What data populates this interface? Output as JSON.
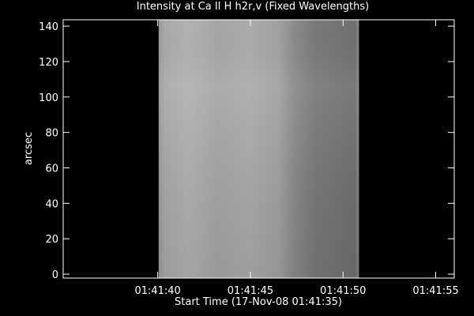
{
  "chart_data": {
    "type": "image",
    "title": "Intensity at Ca II H h2r,v (Fixed Wavelengths)",
    "x_label": "Start Time (17-Nov-08 01:41:35)",
    "y_label": "arcsec",
    "xlim": [
      -0.1,
      21.0
    ],
    "xticks": [
      {
        "value": 5,
        "label": "01:41:40"
      },
      {
        "value": 10,
        "label": "01:41:45"
      },
      {
        "value": 15,
        "label": "01:41:50"
      },
      {
        "value": 20,
        "label": "01:41:55"
      }
    ],
    "ylim": [
      -2.2,
      143.6
    ],
    "yticks": [
      0,
      20,
      40,
      60,
      80,
      100,
      120,
      140
    ],
    "image_x_extent": [
      5.05,
      15.86
    ],
    "image_y_extent": [
      -2.2,
      143.6
    ]
  }
}
